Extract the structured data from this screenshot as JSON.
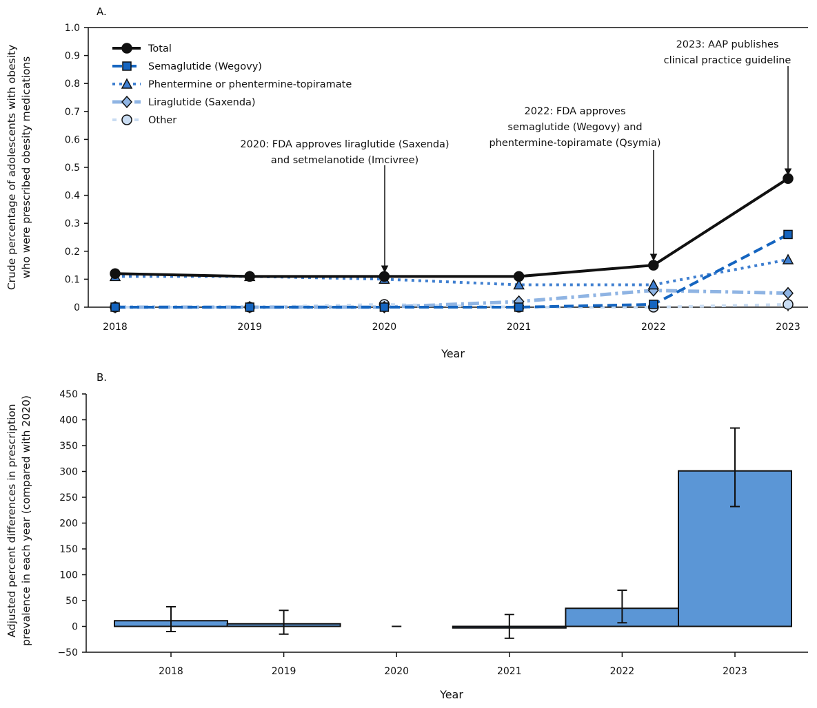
{
  "chart_data": [
    {
      "type": "line",
      "panel_label": "A.",
      "xlabel": "Year",
      "ylabel": [
        "Crude percentage of adolescents with obesity",
        "who were prescribed obesity medications"
      ],
      "x": [
        "2018",
        "2019",
        "2020",
        "2021",
        "2022",
        "2023"
      ],
      "ylim": [
        0,
        1.0
      ],
      "yticks": [
        "0",
        "0.1",
        "0.2",
        "0.3",
        "0.4",
        "0.5",
        "0.6",
        "0.7",
        "0.8",
        "0.9",
        "1.0"
      ],
      "grid": false,
      "legend_placement": "top-left",
      "series": [
        {
          "name": "Total",
          "values": [
            0.12,
            0.11,
            0.11,
            0.11,
            0.15,
            0.46
          ],
          "color": "#111111",
          "marker": "circle",
          "dash": "solid"
        },
        {
          "name": "Semaglutide (Wegovy)",
          "values": [
            0,
            0,
            0,
            0,
            0.01,
            0.26
          ],
          "color": "#1565c0",
          "marker": "square",
          "dash": "dashed"
        },
        {
          "name": "Phentermine or phentermine-topiramate",
          "values": [
            0.11,
            0.11,
            0.1,
            0.08,
            0.08,
            0.17
          ],
          "color": "#3f7fd0",
          "marker": "triangle",
          "dash": "dotted"
        },
        {
          "name": "Liraglutide (Saxenda)",
          "values": [
            0,
            0,
            0,
            0.02,
            0.06,
            0.05
          ],
          "color": "#8fb4e3",
          "marker": "diamond",
          "dash": "dashdot"
        },
        {
          "name": "Other",
          "values": [
            0,
            0,
            0.01,
            0,
            0,
            0.01
          ],
          "color": "#c9dcf2",
          "marker": "circle-light",
          "dash": "dotted-light"
        }
      ],
      "annotations": [
        {
          "year": "2020",
          "lines": [
            "2020: FDA approves liraglutide (Saxenda)",
            "and setmelanotide (Imcivree)"
          ]
        },
        {
          "year": "2022",
          "lines": [
            "2022: FDA approves",
            "semaglutide (Wegovy) and",
            "phentermine-topiramate (Qsymia)"
          ]
        },
        {
          "year": "2023",
          "lines": [
            "2023: AAP publishes",
            "clinical practice guideline"
          ]
        }
      ]
    },
    {
      "type": "bar",
      "panel_label": "B.",
      "xlabel": "Year",
      "ylabel": [
        "Adjusted percent differences in prescription",
        "prevalence in each year (compared with 2020)"
      ],
      "categories": [
        "2018",
        "2019",
        "2020",
        "2021",
        "2022",
        "2023"
      ],
      "values": [
        11,
        5,
        0,
        -3,
        35,
        301
      ],
      "ci_lower": [
        -10,
        -15,
        null,
        -23,
        7,
        232
      ],
      "ci_upper": [
        38,
        31,
        null,
        23,
        70,
        384
      ],
      "ylim": [
        -50,
        450
      ],
      "yticks": [
        "−50",
        "0",
        "50",
        "100",
        "150",
        "200",
        "250",
        "300",
        "350",
        "400",
        "450"
      ],
      "bar_color": "#5b96d6",
      "grid": false
    }
  ]
}
